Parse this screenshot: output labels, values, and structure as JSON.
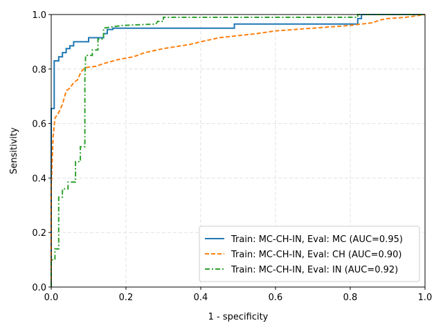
{
  "chart_data": {
    "type": "line",
    "xlabel": "1 - specificity",
    "ylabel": "Sensitivity",
    "xlim": [
      0,
      1
    ],
    "ylim": [
      0,
      1
    ],
    "xticks": [
      {
        "value": 0,
        "label": "0.0"
      },
      0.2,
      0.4,
      0.6,
      0.8,
      {
        "value": 1,
        "label": "1.0"
      }
    ],
    "yticks": [
      {
        "value": 0,
        "label": "0.0"
      },
      0.2,
      0.4,
      0.6,
      0.8,
      {
        "value": 1,
        "label": "1.0"
      }
    ],
    "grid": true,
    "legend": "lower right",
    "series": [
      {
        "name": "Train: MC-CH-IN, Eval: MC (AUC=0.95)",
        "color": "#1f77b4",
        "style": "solid",
        "x": [
          0,
          0,
          0.008,
          0.008,
          0.02,
          0.02,
          0.03,
          0.03,
          0.04,
          0.04,
          0.05,
          0.05,
          0.06,
          0.06,
          0.1,
          0.1,
          0.14,
          0.14,
          0.15,
          0.15,
          0.165,
          0.165,
          0.49,
          0.49,
          0.82,
          0.82,
          0.83,
          0.83,
          1
        ],
        "values": [
          0,
          0.655,
          0.655,
          0.83,
          0.83,
          0.845,
          0.845,
          0.86,
          0.86,
          0.875,
          0.875,
          0.885,
          0.885,
          0.9,
          0.9,
          0.915,
          0.915,
          0.93,
          0.93,
          0.945,
          0.945,
          0.95,
          0.95,
          0.965,
          0.965,
          0.985,
          0.985,
          1,
          1
        ]
      },
      {
        "name": "Train: MC-CH-IN, Eval: CH (AUC=0.90)",
        "color": "#ff7f0e",
        "style": "dashed",
        "x": [
          0,
          0,
          0.005,
          0.01,
          0.02,
          0.03,
          0.04,
          0.05,
          0.06,
          0.07,
          0.08,
          0.09,
          0.12,
          0.14,
          0.18,
          0.22,
          0.25,
          0.3,
          0.37,
          0.4,
          0.45,
          0.55,
          0.6,
          0.7,
          0.8,
          0.86,
          0.88,
          0.9,
          0.95,
          1
        ],
        "values": [
          0,
          0.37,
          0.55,
          0.62,
          0.64,
          0.67,
          0.72,
          0.73,
          0.75,
          0.76,
          0.79,
          0.805,
          0.81,
          0.82,
          0.835,
          0.845,
          0.86,
          0.875,
          0.89,
          0.9,
          0.915,
          0.93,
          0.94,
          0.95,
          0.96,
          0.97,
          0.98,
          0.985,
          0.99,
          1
        ]
      },
      {
        "name": "Train: MC-CH-IN, Eval: IN (AUC=0.92)",
        "color": "#2ca02c",
        "style": "dashdot",
        "x": [
          0,
          0,
          0.01,
          0.01,
          0.02,
          0.02,
          0.03,
          0.03,
          0.045,
          0.045,
          0.065,
          0.065,
          0.078,
          0.078,
          0.09,
          0.09,
          0.092,
          0.11,
          0.11,
          0.125,
          0.125,
          0.14,
          0.14,
          0.19,
          0.28,
          0.285,
          0.3,
          0.3,
          0.82,
          0.82,
          1
        ],
        "values": [
          0,
          0.1,
          0.1,
          0.14,
          0.14,
          0.33,
          0.33,
          0.36,
          0.36,
          0.385,
          0.385,
          0.46,
          0.46,
          0.515,
          0.515,
          0.76,
          0.85,
          0.85,
          0.87,
          0.87,
          0.91,
          0.91,
          0.95,
          0.96,
          0.965,
          0.975,
          0.975,
          0.99,
          0.99,
          1,
          1
        ]
      }
    ]
  }
}
